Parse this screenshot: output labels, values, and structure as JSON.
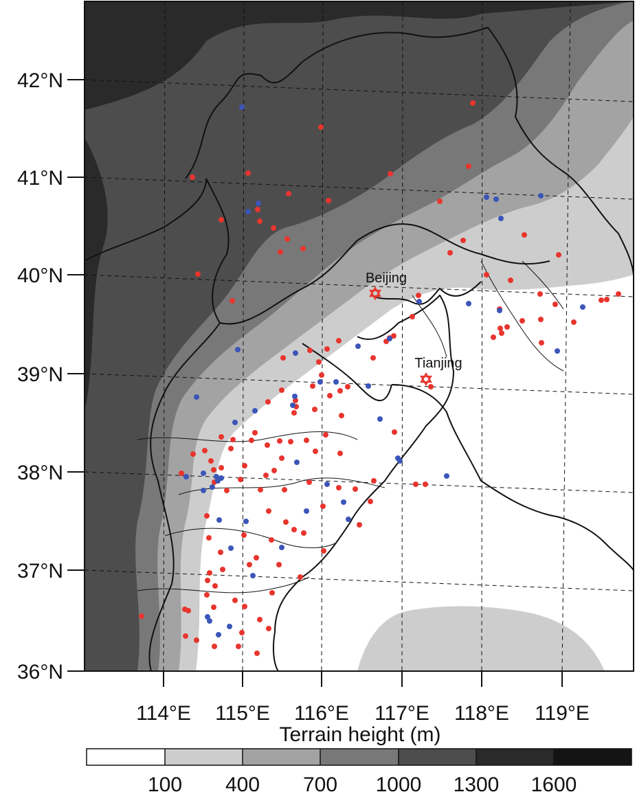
{
  "map": {
    "projection_note": "",
    "lat_labels": [
      "42°N",
      "41°N",
      "40°N",
      "39°N",
      "38°N",
      "37°N",
      "36°N"
    ],
    "lon_labels": [
      "114°E",
      "115°E",
      "116°E",
      "117°E",
      "118°E",
      "119°E"
    ],
    "cities": [
      {
        "name": "Beijing",
        "symbol": "star-of-david",
        "color": "#e8352e"
      },
      {
        "name": "Tianjing",
        "symbol": "star-of-david",
        "color": "#e8352e"
      }
    ],
    "station_colors": {
      "red": "#e8352e",
      "blue": "#3b55b8"
    }
  },
  "colorbar": {
    "title": "Terrain height (m)",
    "ticks": [
      "100",
      "400",
      "700",
      "1000",
      "1300",
      "1600"
    ],
    "levels_m": [
      100,
      400,
      700,
      1000,
      1300,
      1600
    ],
    "colors": [
      "#ffffff",
      "#cdcdcd",
      "#a3a3a3",
      "#787878",
      "#4d4d4d",
      "#2a2a2a",
      "#141414"
    ]
  }
}
